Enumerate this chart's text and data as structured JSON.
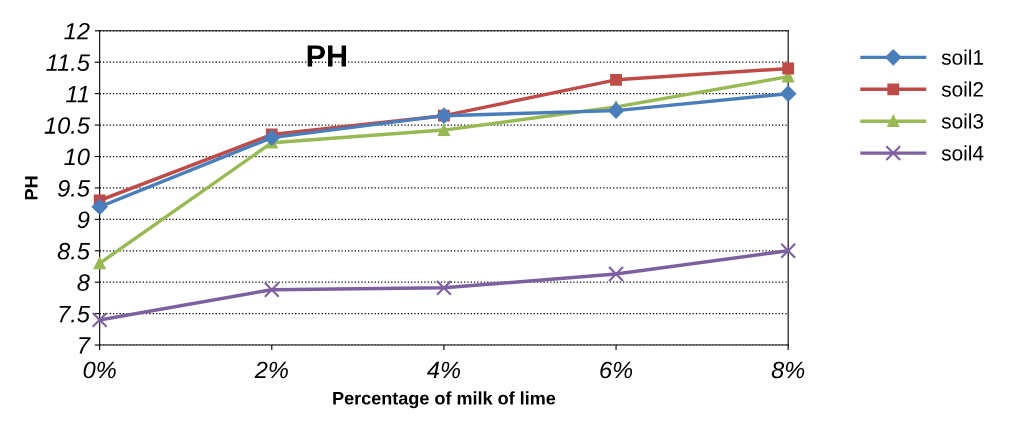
{
  "chart_data": {
    "type": "line",
    "title": "PH",
    "xlabel": "Percentage of milk of lime",
    "ylabel": "PH",
    "categories": [
      "0%",
      "2%",
      "4%",
      "6%",
      "8%"
    ],
    "series": [
      {
        "name": "soil1",
        "color": "#4a7ebb",
        "marker": "diamond",
        "values": [
          9.2,
          10.3,
          10.65,
          10.73,
          11.0
        ]
      },
      {
        "name": "soil2",
        "color": "#be4b48",
        "marker": "square",
        "values": [
          9.3,
          10.35,
          10.65,
          11.22,
          11.4
        ]
      },
      {
        "name": "soil3",
        "color": "#98b954",
        "marker": "triangle",
        "values": [
          8.3,
          10.22,
          10.42,
          10.79,
          11.27
        ]
      },
      {
        "name": "soil4",
        "color": "#7d60a0",
        "marker": "cross",
        "values": [
          7.4,
          7.88,
          7.91,
          8.13,
          8.5
        ]
      }
    ],
    "ylim": [
      7,
      12
    ],
    "yticks": [
      7,
      7.5,
      8,
      8.5,
      9,
      9.5,
      10,
      10.5,
      11,
      11.5,
      12
    ],
    "grid": "y",
    "legend": "right",
    "line_style": "solid"
  }
}
